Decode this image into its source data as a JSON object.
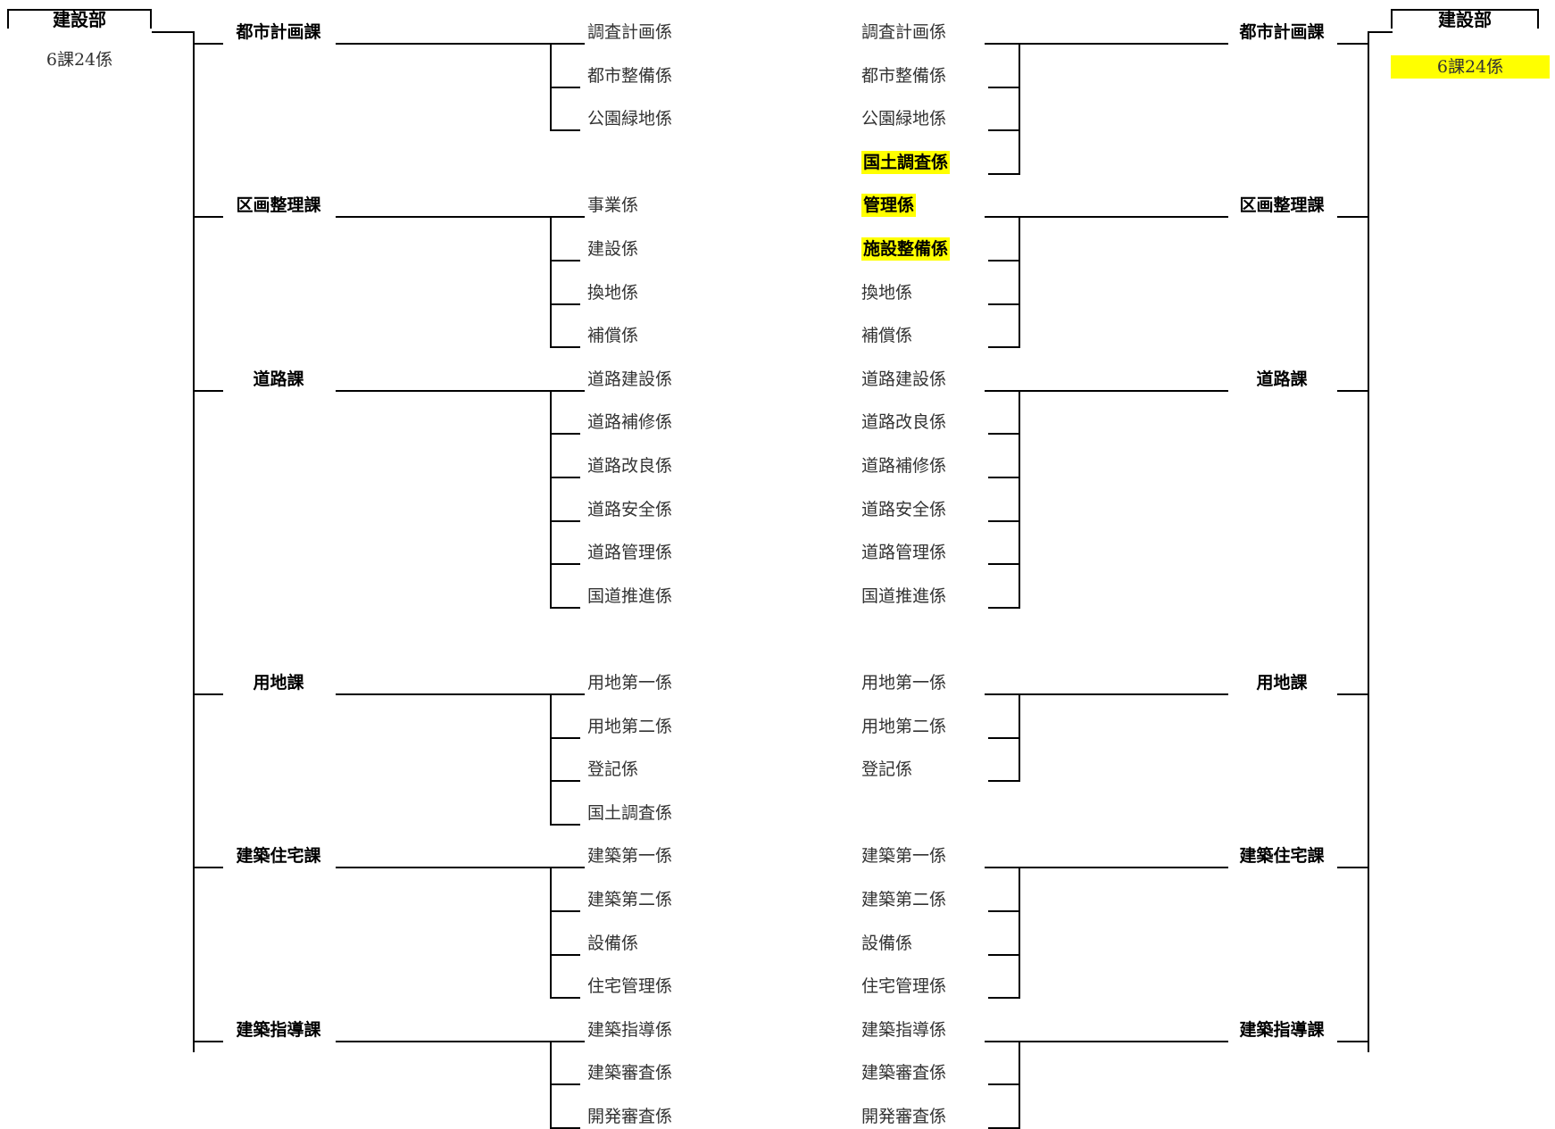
{
  "left": {
    "department": "建設部",
    "count": "6課24係",
    "sections": [
      {
        "name": "都市計画課",
        "units": [
          {
            "name": "調査計画係"
          },
          {
            "name": "都市整備係"
          },
          {
            "name": "公園緑地係"
          }
        ]
      },
      {
        "name": "区画整理課",
        "units": [
          {
            "name": "事業係"
          },
          {
            "name": "建設係"
          },
          {
            "name": "換地係"
          },
          {
            "name": "補償係"
          }
        ]
      },
      {
        "name": "道路課",
        "units": [
          {
            "name": "道路建設係"
          },
          {
            "name": "道路補修係"
          },
          {
            "name": "道路改良係"
          },
          {
            "name": "道路安全係"
          },
          {
            "name": "道路管理係"
          },
          {
            "name": "国道推進係"
          }
        ]
      },
      {
        "name": "用地課",
        "units": [
          {
            "name": "用地第一係"
          },
          {
            "name": "用地第二係"
          },
          {
            "name": "登記係"
          },
          {
            "name": "国土調査係"
          }
        ]
      },
      {
        "name": "建築住宅課",
        "units": [
          {
            "name": "建築第一係"
          },
          {
            "name": "建築第二係"
          },
          {
            "name": "設備係"
          },
          {
            "name": "住宅管理係"
          }
        ]
      },
      {
        "name": "建築指導課",
        "units": [
          {
            "name": "建築指導係"
          },
          {
            "name": "建築審査係"
          },
          {
            "name": "開発審査係"
          }
        ]
      }
    ]
  },
  "right": {
    "department": "建設部",
    "count": "6課24係",
    "count_highlight": true,
    "sections": [
      {
        "name": "都市計画課",
        "units": [
          {
            "name": "調査計画係"
          },
          {
            "name": "都市整備係"
          },
          {
            "name": "公園緑地係"
          },
          {
            "name": "国土調査係",
            "highlight": true
          }
        ]
      },
      {
        "name": "区画整理課",
        "units": [
          {
            "name": "管理係",
            "highlight": true
          },
          {
            "name": "施設整備係",
            "highlight": true
          },
          {
            "name": "換地係"
          },
          {
            "name": "補償係"
          }
        ]
      },
      {
        "name": "道路課",
        "units": [
          {
            "name": "道路建設係"
          },
          {
            "name": "道路改良係"
          },
          {
            "name": "道路補修係"
          },
          {
            "name": "道路安全係"
          },
          {
            "name": "道路管理係"
          },
          {
            "name": "国道推進係"
          }
        ]
      },
      {
        "name": "用地課",
        "units": [
          {
            "name": "用地第一係"
          },
          {
            "name": "用地第二係"
          },
          {
            "name": "登記係"
          }
        ]
      },
      {
        "name": "建築住宅課",
        "units": [
          {
            "name": "建築第一係"
          },
          {
            "name": "建築第二係"
          },
          {
            "name": "設備係"
          },
          {
            "name": "住宅管理係"
          }
        ]
      },
      {
        "name": "建築指導課",
        "units": [
          {
            "name": "建築指導係"
          },
          {
            "name": "建築審査係"
          },
          {
            "name": "開発審査係"
          }
        ]
      }
    ]
  },
  "colors": {
    "highlight": "#ffff00",
    "line": "#000000"
  }
}
